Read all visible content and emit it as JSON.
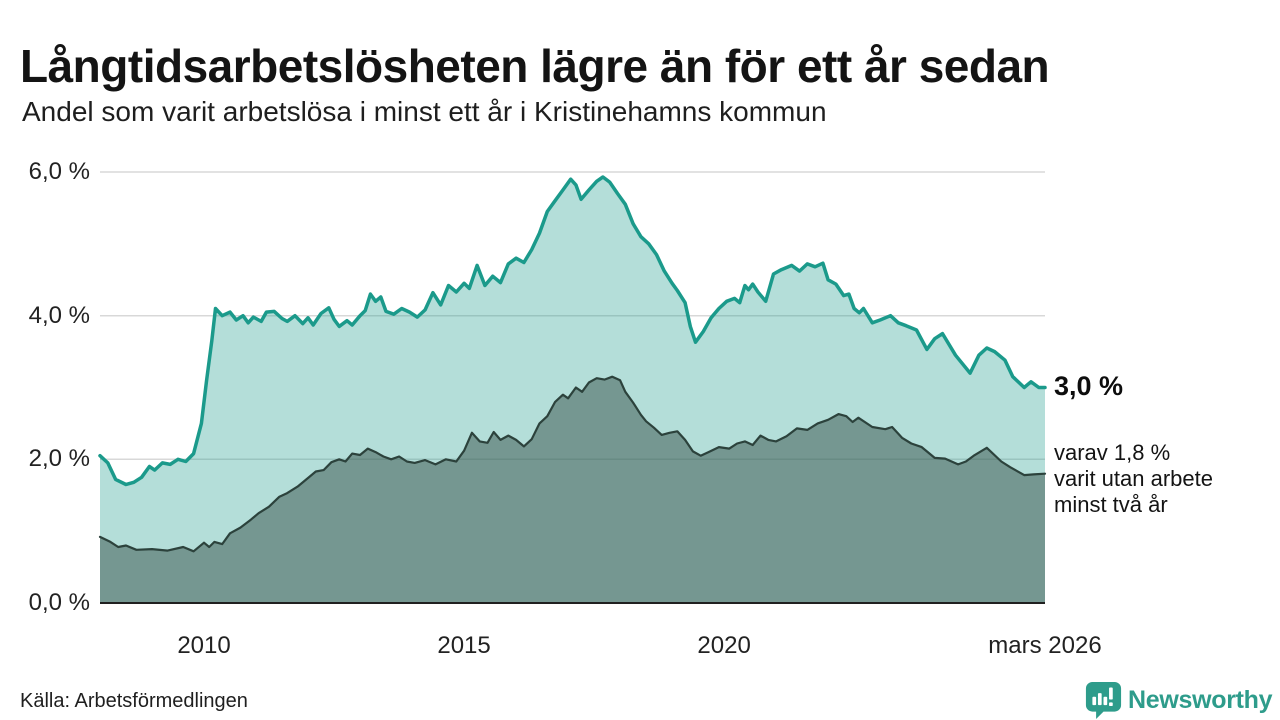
{
  "header": {
    "title": "Långtidsarbetslösheten lägre än för ett år sedan",
    "subtitle": "Andel som varit arbetslösa i minst ett år i Kristinehamns kommun"
  },
  "chart_data": {
    "type": "area",
    "unit": "%",
    "title": "Långtidsarbetslösheten lägre än för ett år sedan",
    "subtitle": "Andel som varit arbetslösa i minst ett år i Kristinehamns kommun",
    "x_domain": [
      2008.0,
      2026.17
    ],
    "grid": true,
    "colors": {
      "total_line": "#1b9a8b",
      "total_fill": "rgba(27,154,139,0.33)",
      "two_year_line": "#2c423c",
      "two_year_fill": "rgba(59,86,78,0.52)",
      "gridline": "#d8d8d8",
      "baseline": "#202020"
    },
    "y_axis": {
      "range": [
        0,
        6
      ],
      "gridlines": [
        2,
        4,
        6
      ],
      "ticks": [
        {
          "value": 0,
          "label": "0,0 %"
        },
        {
          "value": 2,
          "label": "2,0 %"
        },
        {
          "value": 4,
          "label": "4,0 %"
        },
        {
          "value": 6,
          "label": "6,0 %"
        }
      ]
    },
    "x_axis": {
      "ticks": [
        {
          "value": 2010,
          "label": "2010"
        },
        {
          "value": 2015,
          "label": "2015"
        },
        {
          "value": 2020,
          "label": "2020"
        },
        {
          "value": 2026.17,
          "label": "mars 2026"
        }
      ]
    },
    "series": [
      {
        "name": "Andel arbetslösa minst ett år",
        "latest_value": 3.0,
        "points": [
          [
            2008.0,
            2.05
          ],
          [
            2008.15,
            1.95
          ],
          [
            2008.3,
            1.72
          ],
          [
            2008.5,
            1.65
          ],
          [
            2008.65,
            1.68
          ],
          [
            2008.8,
            1.75
          ],
          [
            2008.95,
            1.9
          ],
          [
            2009.05,
            1.85
          ],
          [
            2009.2,
            1.95
          ],
          [
            2009.35,
            1.93
          ],
          [
            2009.5,
            2.0
          ],
          [
            2009.65,
            1.97
          ],
          [
            2009.8,
            2.08
          ],
          [
            2009.95,
            2.5
          ],
          [
            2010.05,
            3.1
          ],
          [
            2010.15,
            3.65
          ],
          [
            2010.22,
            4.1
          ],
          [
            2010.35,
            4.0
          ],
          [
            2010.5,
            4.05
          ],
          [
            2010.62,
            3.94
          ],
          [
            2010.75,
            4.0
          ],
          [
            2010.85,
            3.9
          ],
          [
            2010.95,
            3.98
          ],
          [
            2011.1,
            3.92
          ],
          [
            2011.2,
            4.05
          ],
          [
            2011.35,
            4.06
          ],
          [
            2011.5,
            3.96
          ],
          [
            2011.6,
            3.92
          ],
          [
            2011.75,
            4.0
          ],
          [
            2011.9,
            3.89
          ],
          [
            2012.0,
            3.97
          ],
          [
            2012.1,
            3.87
          ],
          [
            2012.25,
            4.03
          ],
          [
            2012.4,
            4.11
          ],
          [
            2012.5,
            3.95
          ],
          [
            2012.6,
            3.85
          ],
          [
            2012.75,
            3.93
          ],
          [
            2012.85,
            3.87
          ],
          [
            2013.0,
            4.0
          ],
          [
            2013.1,
            4.07
          ],
          [
            2013.2,
            4.3
          ],
          [
            2013.3,
            4.2
          ],
          [
            2013.4,
            4.26
          ],
          [
            2013.5,
            4.06
          ],
          [
            2013.65,
            4.02
          ],
          [
            2013.8,
            4.1
          ],
          [
            2013.95,
            4.05
          ],
          [
            2014.1,
            3.98
          ],
          [
            2014.25,
            4.08
          ],
          [
            2014.4,
            4.32
          ],
          [
            2014.55,
            4.15
          ],
          [
            2014.7,
            4.42
          ],
          [
            2014.85,
            4.33
          ],
          [
            2015.0,
            4.45
          ],
          [
            2015.1,
            4.38
          ],
          [
            2015.25,
            4.7
          ],
          [
            2015.4,
            4.42
          ],
          [
            2015.55,
            4.55
          ],
          [
            2015.7,
            4.46
          ],
          [
            2015.85,
            4.72
          ],
          [
            2016.0,
            4.8
          ],
          [
            2016.15,
            4.74
          ],
          [
            2016.3,
            4.92
          ],
          [
            2016.45,
            5.15
          ],
          [
            2016.6,
            5.45
          ],
          [
            2016.75,
            5.6
          ],
          [
            2016.9,
            5.75
          ],
          [
            2017.05,
            5.9
          ],
          [
            2017.15,
            5.82
          ],
          [
            2017.25,
            5.62
          ],
          [
            2017.4,
            5.75
          ],
          [
            2017.55,
            5.87
          ],
          [
            2017.67,
            5.93
          ],
          [
            2017.8,
            5.86
          ],
          [
            2017.95,
            5.7
          ],
          [
            2018.1,
            5.55
          ],
          [
            2018.25,
            5.28
          ],
          [
            2018.4,
            5.1
          ],
          [
            2018.55,
            5.0
          ],
          [
            2018.7,
            4.85
          ],
          [
            2018.85,
            4.62
          ],
          [
            2019.0,
            4.45
          ],
          [
            2019.1,
            4.35
          ],
          [
            2019.25,
            4.18
          ],
          [
            2019.35,
            3.85
          ],
          [
            2019.45,
            3.63
          ],
          [
            2019.6,
            3.78
          ],
          [
            2019.75,
            3.97
          ],
          [
            2019.9,
            4.1
          ],
          [
            2020.05,
            4.2
          ],
          [
            2020.2,
            4.24
          ],
          [
            2020.3,
            4.18
          ],
          [
            2020.4,
            4.42
          ],
          [
            2020.47,
            4.36
          ],
          [
            2020.55,
            4.44
          ],
          [
            2020.65,
            4.33
          ],
          [
            2020.8,
            4.2
          ],
          [
            2020.95,
            4.58
          ],
          [
            2021.1,
            4.64
          ],
          [
            2021.3,
            4.7
          ],
          [
            2021.45,
            4.62
          ],
          [
            2021.6,
            4.72
          ],
          [
            2021.75,
            4.68
          ],
          [
            2021.9,
            4.73
          ],
          [
            2022.0,
            4.5
          ],
          [
            2022.15,
            4.44
          ],
          [
            2022.3,
            4.28
          ],
          [
            2022.4,
            4.3
          ],
          [
            2022.5,
            4.1
          ],
          [
            2022.6,
            4.04
          ],
          [
            2022.68,
            4.1
          ],
          [
            2022.85,
            3.9
          ],
          [
            2023.0,
            3.94
          ],
          [
            2023.2,
            4.0
          ],
          [
            2023.35,
            3.9
          ],
          [
            2023.5,
            3.86
          ],
          [
            2023.7,
            3.8
          ],
          [
            2023.9,
            3.53
          ],
          [
            2024.05,
            3.68
          ],
          [
            2024.2,
            3.75
          ],
          [
            2024.45,
            3.45
          ],
          [
            2024.73,
            3.2
          ],
          [
            2024.9,
            3.45
          ],
          [
            2025.05,
            3.55
          ],
          [
            2025.2,
            3.5
          ],
          [
            2025.4,
            3.38
          ],
          [
            2025.55,
            3.15
          ],
          [
            2025.77,
            3.0
          ],
          [
            2025.9,
            3.08
          ],
          [
            2026.05,
            3.0
          ],
          [
            2026.17,
            3.0
          ]
        ]
      },
      {
        "name": "varav utan arbete minst två år",
        "latest_value": 1.8,
        "points": [
          [
            2008.0,
            0.92
          ],
          [
            2008.2,
            0.85
          ],
          [
            2008.35,
            0.78
          ],
          [
            2008.5,
            0.8
          ],
          [
            2008.7,
            0.74
          ],
          [
            2009.0,
            0.75
          ],
          [
            2009.3,
            0.73
          ],
          [
            2009.6,
            0.78
          ],
          [
            2009.8,
            0.72
          ],
          [
            2010.0,
            0.84
          ],
          [
            2010.1,
            0.78
          ],
          [
            2010.2,
            0.85
          ],
          [
            2010.35,
            0.82
          ],
          [
            2010.5,
            0.97
          ],
          [
            2010.7,
            1.05
          ],
          [
            2010.9,
            1.16
          ],
          [
            2011.05,
            1.25
          ],
          [
            2011.25,
            1.34
          ],
          [
            2011.45,
            1.48
          ],
          [
            2011.6,
            1.53
          ],
          [
            2011.8,
            1.62
          ],
          [
            2012.0,
            1.74
          ],
          [
            2012.15,
            1.83
          ],
          [
            2012.3,
            1.85
          ],
          [
            2012.45,
            1.96
          ],
          [
            2012.6,
            2.0
          ],
          [
            2012.72,
            1.97
          ],
          [
            2012.85,
            2.08
          ],
          [
            2013.0,
            2.06
          ],
          [
            2013.15,
            2.15
          ],
          [
            2013.3,
            2.1
          ],
          [
            2013.45,
            2.04
          ],
          [
            2013.6,
            2.0
          ],
          [
            2013.75,
            2.04
          ],
          [
            2013.9,
            1.97
          ],
          [
            2014.05,
            1.95
          ],
          [
            2014.25,
            1.99
          ],
          [
            2014.45,
            1.93
          ],
          [
            2014.65,
            2.0
          ],
          [
            2014.85,
            1.97
          ],
          [
            2015.0,
            2.12
          ],
          [
            2015.15,
            2.37
          ],
          [
            2015.3,
            2.25
          ],
          [
            2015.45,
            2.23
          ],
          [
            2015.57,
            2.38
          ],
          [
            2015.7,
            2.27
          ],
          [
            2015.85,
            2.33
          ],
          [
            2016.0,
            2.27
          ],
          [
            2016.15,
            2.18
          ],
          [
            2016.3,
            2.28
          ],
          [
            2016.45,
            2.5
          ],
          [
            2016.6,
            2.6
          ],
          [
            2016.75,
            2.8
          ],
          [
            2016.9,
            2.9
          ],
          [
            2017.0,
            2.85
          ],
          [
            2017.15,
            3.0
          ],
          [
            2017.27,
            2.94
          ],
          [
            2017.4,
            3.07
          ],
          [
            2017.55,
            3.13
          ],
          [
            2017.7,
            3.11
          ],
          [
            2017.85,
            3.15
          ],
          [
            2018.0,
            3.1
          ],
          [
            2018.1,
            2.94
          ],
          [
            2018.25,
            2.79
          ],
          [
            2018.4,
            2.62
          ],
          [
            2018.5,
            2.53
          ],
          [
            2018.65,
            2.44
          ],
          [
            2018.8,
            2.34
          ],
          [
            2018.95,
            2.37
          ],
          [
            2019.1,
            2.39
          ],
          [
            2019.25,
            2.27
          ],
          [
            2019.4,
            2.11
          ],
          [
            2019.55,
            2.05
          ],
          [
            2019.7,
            2.1
          ],
          [
            2019.9,
            2.17
          ],
          [
            2020.1,
            2.15
          ],
          [
            2020.25,
            2.22
          ],
          [
            2020.4,
            2.25
          ],
          [
            2020.55,
            2.2
          ],
          [
            2020.7,
            2.33
          ],
          [
            2020.85,
            2.27
          ],
          [
            2021.0,
            2.25
          ],
          [
            2021.2,
            2.32
          ],
          [
            2021.4,
            2.43
          ],
          [
            2021.6,
            2.41
          ],
          [
            2021.8,
            2.5
          ],
          [
            2022.0,
            2.55
          ],
          [
            2022.2,
            2.63
          ],
          [
            2022.35,
            2.6
          ],
          [
            2022.47,
            2.52
          ],
          [
            2022.58,
            2.58
          ],
          [
            2022.85,
            2.45
          ],
          [
            2023.1,
            2.42
          ],
          [
            2023.23,
            2.45
          ],
          [
            2023.42,
            2.3
          ],
          [
            2023.6,
            2.22
          ],
          [
            2023.8,
            2.17
          ],
          [
            2024.05,
            2.02
          ],
          [
            2024.25,
            2.01
          ],
          [
            2024.5,
            1.93
          ],
          [
            2024.65,
            1.97
          ],
          [
            2024.8,
            2.05
          ],
          [
            2025.05,
            2.16
          ],
          [
            2025.33,
            1.97
          ],
          [
            2025.5,
            1.89
          ],
          [
            2025.77,
            1.78
          ],
          [
            2025.95,
            1.79
          ],
          [
            2026.17,
            1.8
          ]
        ]
      }
    ],
    "annotations": {
      "latest_total_label": "3,0 %",
      "secondary_lines": [
        "varav 1,8 %",
        "varit utan arbete",
        "minst två år"
      ]
    }
  },
  "footer": {
    "source": "Källa: Arbetsförmedlingen",
    "logo_text": "Newsworthy"
  }
}
